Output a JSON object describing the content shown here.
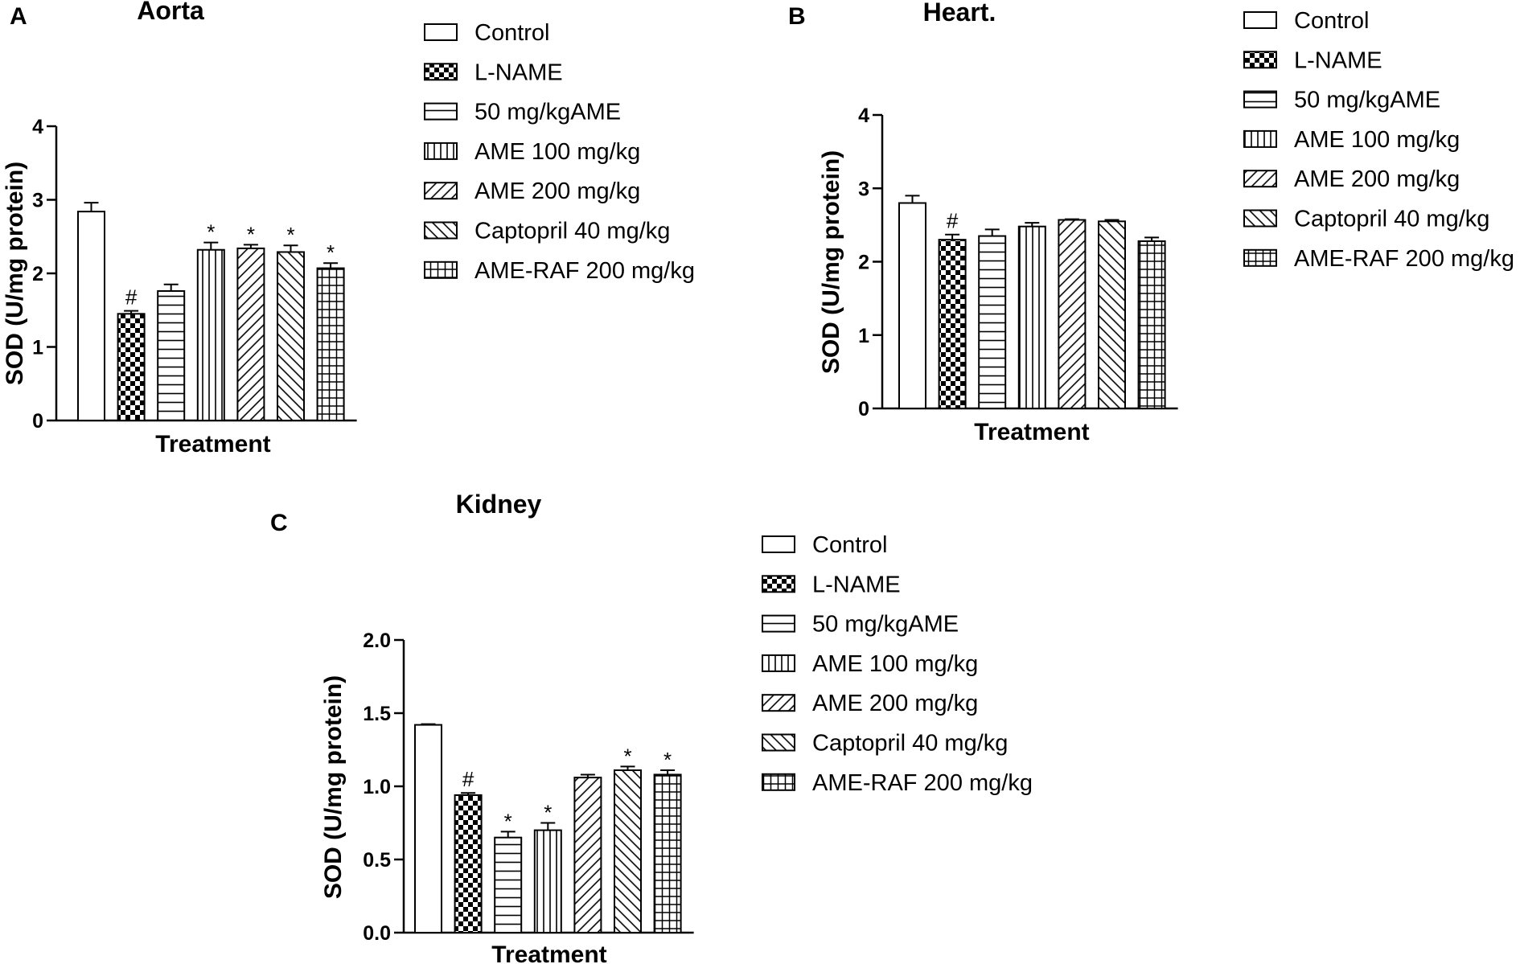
{
  "legend_labels": [
    "Control",
    "L-NAME",
    "50 mg/kgAME",
    "AME 100 mg/kg",
    "AME 200 mg/kg",
    "Captopril 40 mg/kg",
    "AME-RAF 200 mg/kg"
  ],
  "chart_data": [
    {
      "panel": "A",
      "type": "bar",
      "title": "Aorta",
      "xlabel": "Treatment",
      "ylabel": "SOD (U/mg protein)",
      "ylim": [
        0,
        4
      ],
      "yticks": [
        "0",
        "1",
        "2",
        "3",
        "4"
      ],
      "categories": [
        "Control",
        "L-NAME",
        "50 mg/kgAME",
        "AME 100 mg/kg",
        "AME 200 mg/kg",
        "Captopril 40 mg/kg",
        "AME-RAF 200 mg/kg"
      ],
      "values": [
        2.84,
        1.45,
        1.76,
        2.32,
        2.34,
        2.29,
        2.07
      ],
      "errors": [
        0.12,
        0.04,
        0.09,
        0.1,
        0.05,
        0.09,
        0.07
      ],
      "significance": [
        "",
        "#",
        "",
        "*",
        "*",
        "*",
        "*"
      ]
    },
    {
      "panel": "B",
      "type": "bar",
      "title": "Heart.",
      "xlabel": "Treatment",
      "ylabel": "SOD (U/mg protein)",
      "ylim": [
        0,
        4
      ],
      "yticks": [
        "0",
        "1",
        "2",
        "3",
        "4"
      ],
      "categories": [
        "Control",
        "L-NAME",
        "50 mg/kgAME",
        "AME 100 mg/kg",
        "AME 200 mg/kg",
        "Captopril 40 mg/kg",
        "AME-RAF 200 mg/kg"
      ],
      "values": [
        2.8,
        2.3,
        2.35,
        2.48,
        2.57,
        2.55,
        2.28
      ],
      "errors": [
        0.1,
        0.07,
        0.09,
        0.05,
        0.01,
        0.02,
        0.05
      ],
      "significance": [
        "",
        "#",
        "",
        "",
        "",
        "",
        ""
      ]
    },
    {
      "panel": "C",
      "type": "bar",
      "title": "Kidney",
      "xlabel": "Treatment",
      "ylabel": "SOD (U/mg protein)",
      "ylim": [
        0,
        2
      ],
      "yticks": [
        "0.0",
        "0.5",
        "1.0",
        "1.5",
        "2.0"
      ],
      "categories": [
        "Control",
        "L-NAME",
        "50 mg/kgAME",
        "AME 100 mg/kg",
        "AME 200 mg/kg",
        "Captopril 40 mg/kg",
        "AME-RAF 200 mg/kg"
      ],
      "values": [
        1.42,
        0.94,
        0.65,
        0.7,
        1.06,
        1.11,
        1.08
      ],
      "errors": [
        0.005,
        0.015,
        0.04,
        0.05,
        0.02,
        0.025,
        0.03
      ],
      "significance": [
        "",
        "#",
        "*",
        "*",
        "",
        "*",
        "*"
      ]
    }
  ]
}
